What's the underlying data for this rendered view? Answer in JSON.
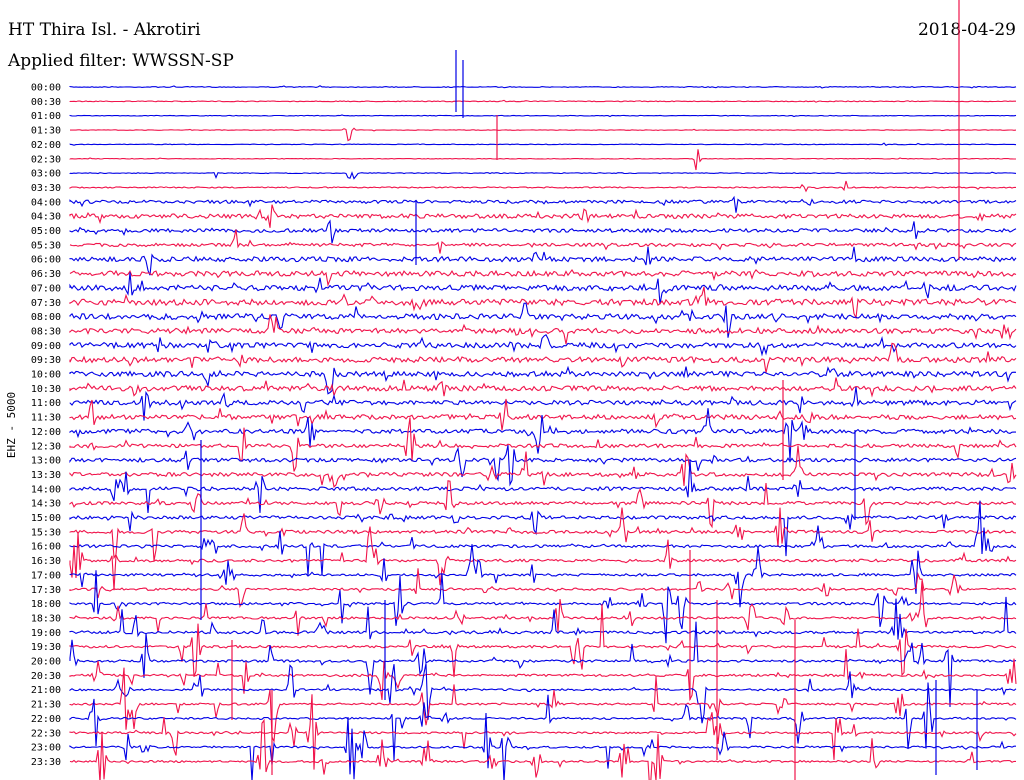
{
  "header": {
    "station": "HT Thira Isl. - Akrotiri",
    "date": "2018-04-29",
    "filter": "Applied filter: WWSSN-SP"
  },
  "chart_data": {
    "type": "line",
    "title": "HT Thira Isl. - Akrotiri",
    "ylabel": "EHZ - 5000",
    "row_labels": [
      "00:00",
      "00:30",
      "01:00",
      "01:30",
      "02:00",
      "02:30",
      "03:00",
      "03:30",
      "04:00",
      "04:30",
      "05:00",
      "05:30",
      "06:00",
      "06:30",
      "07:00",
      "07:30",
      "08:00",
      "08:30",
      "09:00",
      "09:30",
      "10:00",
      "10:30",
      "11:00",
      "11:30",
      "12:00",
      "12:30",
      "13:00",
      "13:30",
      "14:00",
      "14:30",
      "15:00",
      "15:30",
      "16:00",
      "16:30",
      "17:00",
      "17:30",
      "18:00",
      "18:30",
      "19:00",
      "19:30",
      "20:00",
      "20:30",
      "21:00",
      "21:30",
      "22:00",
      "22:30",
      "23:00",
      "23:30"
    ],
    "colors": [
      "#0000e6",
      "#f0144b"
    ],
    "noise_levels": [
      0.4,
      0.4,
      0.3,
      0.3,
      0.3,
      0.3,
      0.4,
      0.6,
      1.6,
      2.2,
      1.8,
      1.6,
      2.4,
      2.6,
      2.8,
      3.0,
      2.8,
      2.6,
      2.6,
      2.8,
      2.6,
      2.6,
      2.4,
      2.4,
      2.2,
      1.8,
      1.9,
      1.9,
      1.8,
      1.6,
      1.6,
      1.6,
      1.4,
      1.4,
      1.2,
      1.2,
      1.2,
      1.2,
      1.4,
      1.2,
      1.2,
      1.2,
      1.0,
      1.0,
      1.0,
      1.0,
      1.0,
      1.0
    ]
  }
}
